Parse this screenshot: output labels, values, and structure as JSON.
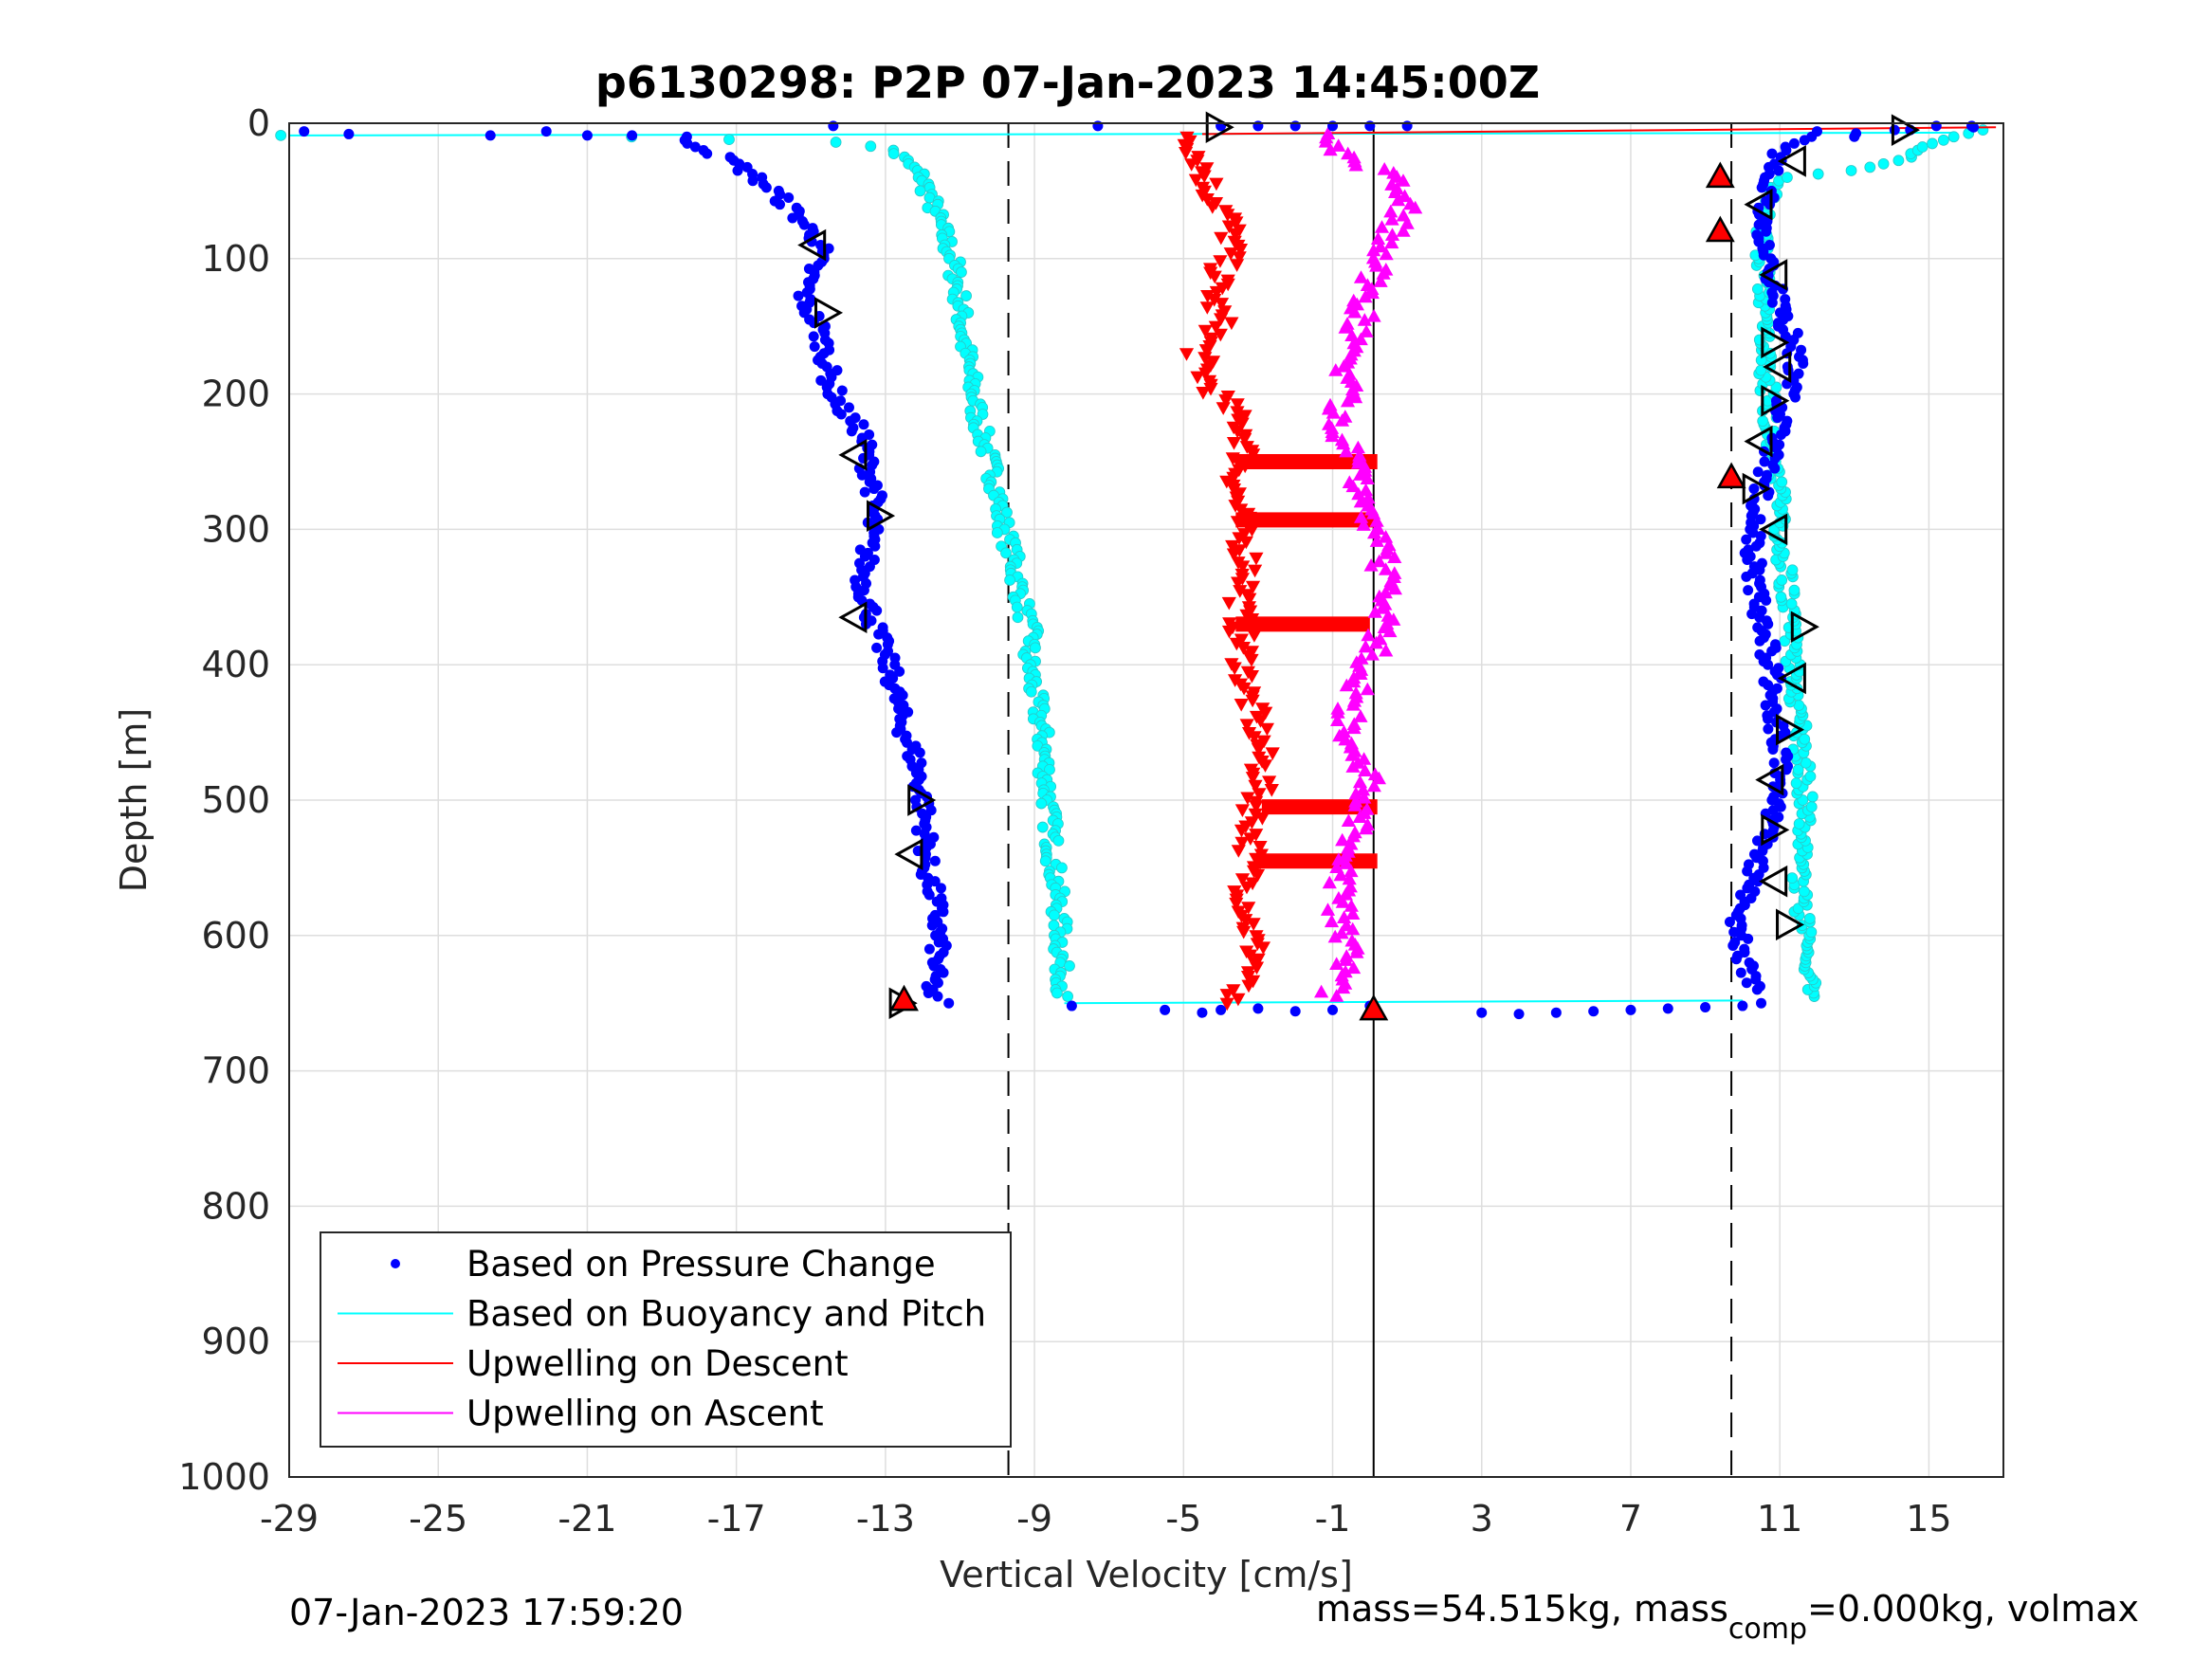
{
  "chart_data": {
    "type": "scatter",
    "title": "p6130298: P2P 07-Jan-2023 14:45:00Z",
    "xlabel": "Vertical Velocity [cm/s]",
    "ylabel": "Depth [m]",
    "xlim": [
      -29,
      17
    ],
    "ylim": [
      0,
      1000
    ],
    "y_reversed": true,
    "xticks": [
      -29,
      -25,
      -21,
      -17,
      -13,
      -9,
      -5,
      -1,
      3,
      7,
      11,
      15
    ],
    "yticks": [
      0,
      100,
      200,
      300,
      400,
      500,
      600,
      700,
      800,
      900,
      1000
    ],
    "grid": true,
    "legend_position": "bottom-left",
    "reference_lines": [
      {
        "style": "dashed",
        "x": -9.7
      },
      {
        "style": "dashed",
        "x": 9.7
      },
      {
        "style": "solid",
        "x": 0.1
      }
    ],
    "legend": [
      {
        "label": "Based on Pressure Change",
        "color": "#0000ff",
        "marker": "dot"
      },
      {
        "label": "Based on Buoyancy and Pitch",
        "color": "#00ffff",
        "marker": "line"
      },
      {
        "label": "Upwelling on Descent",
        "color": "#ff0000",
        "marker": "line"
      },
      {
        "label": "Upwelling on Ascent",
        "color": "#ff00ff",
        "marker": "line"
      }
    ],
    "series": [
      {
        "name": "Based on Pressure Change",
        "color": "#0000ff",
        "profile": [
          {
            "side": "descent",
            "x": [
              -18.5,
              -17.0,
              -16.0,
              -15.3,
              -14.7,
              -15.0,
              -15.2,
              -14.8,
              -14.6,
              -14.5,
              -14.2,
              -13.6,
              -13.5,
              -13.3,
              -13.4,
              -13.6,
              -13.3,
              -12.8,
              -12.6,
              -12.2,
              -12.0,
              -11.9,
              -11.9,
              -11.7,
              -11.6,
              -11.6,
              -11.7,
              -11.8
            ],
            "y": [
              10,
              30,
              50,
              70,
              90,
              110,
              130,
              150,
              170,
              190,
              210,
              230,
              250,
              270,
              300,
              340,
              370,
              410,
              440,
              470,
              500,
              530,
              550,
              570,
              590,
              610,
              630,
              645
            ]
          },
          {
            "side": "ascent",
            "x": [
              10.3,
              10.0,
              9.9,
              10.2,
              10.6,
              10.9,
              11.0,
              10.9,
              10.8,
              10.6,
              10.4,
              10.3,
              10.3,
              10.4,
              10.6,
              10.8,
              11.0,
              11.2,
              11.4,
              11.3,
              11.1,
              10.9,
              10.7,
              10.6,
              10.6,
              10.7,
              10.8,
              11.0,
              11.0,
              12.0,
              14.0,
              16.0
            ],
            "y": [
              640,
              610,
              590,
              560,
              530,
              500,
              470,
              440,
              410,
              380,
              350,
              320,
              300,
              280,
              260,
              240,
              220,
              200,
              180,
              160,
              140,
              120,
              100,
              80,
              60,
              45,
              35,
              25,
              20,
              10,
              5,
              2
            ]
          }
        ],
        "surface_points": {
          "x": [
            -28.6,
            -27.4,
            -23.6,
            -22.1,
            -21.0,
            -19.8,
            -14.4,
            -7.3,
            -4.0,
            -3.0,
            -2.0,
            -1.0,
            0.0,
            1.0,
            12.0,
            13.0,
            14.5,
            15.2,
            16.2
          ],
          "y": [
            6,
            8,
            9,
            6,
            9,
            9,
            2,
            2,
            2,
            2,
            2,
            2,
            2,
            2,
            6,
            10,
            5,
            2,
            3
          ]
        },
        "bottom_points": {
          "x": [
            -11.3,
            -8.0,
            -5.5,
            -4.5,
            -4.0,
            -3.0,
            -2.0,
            -1.0,
            0.0,
            3.0,
            4.0,
            5.0,
            6.0,
            7.0,
            8.0,
            9.0,
            10.0,
            10.5
          ],
          "y": [
            650,
            652,
            655,
            657,
            655,
            654,
            656,
            655,
            652,
            657,
            658,
            657,
            656,
            655,
            654,
            653,
            652,
            650
          ]
        },
        "markers": [
          {
            "symbol": "left-triangle",
            "x": -14.9,
            "y": 90
          },
          {
            "symbol": "right-triangle",
            "x": -14.6,
            "y": 140
          },
          {
            "symbol": "left-triangle",
            "x": -13.8,
            "y": 245
          },
          {
            "symbol": "right-triangle",
            "x": -13.2,
            "y": 290
          },
          {
            "symbol": "left-triangle",
            "x": -13.8,
            "y": 365
          },
          {
            "symbol": "right-triangle",
            "x": -12.1,
            "y": 500
          },
          {
            "symbol": "left-triangle",
            "x": -12.3,
            "y": 540
          },
          {
            "symbol": "right-triangle",
            "x": -12.6,
            "y": 650
          },
          {
            "symbol": "left-triangle",
            "x": 11.4,
            "y": 28
          },
          {
            "symbol": "left-triangle",
            "x": 10.5,
            "y": 60
          },
          {
            "symbol": "left-triangle",
            "x": 10.9,
            "y": 112
          },
          {
            "symbol": "right-triangle",
            "x": 10.8,
            "y": 162
          },
          {
            "symbol": "left-triangle",
            "x": 11.0,
            "y": 180
          },
          {
            "symbol": "right-triangle",
            "x": 10.8,
            "y": 205
          },
          {
            "symbol": "left-triangle",
            "x": 10.5,
            "y": 235
          },
          {
            "symbol": "right-triangle",
            "x": 10.3,
            "y": 270
          },
          {
            "symbol": "left-triangle",
            "x": 10.9,
            "y": 300
          },
          {
            "symbol": "right-triangle",
            "x": 11.6,
            "y": 372
          },
          {
            "symbol": "left-triangle",
            "x": 11.4,
            "y": 410
          },
          {
            "symbol": "right-triangle",
            "x": 11.2,
            "y": 448
          },
          {
            "symbol": "left-triangle",
            "x": 10.8,
            "y": 485
          },
          {
            "symbol": "right-triangle",
            "x": 10.8,
            "y": 522
          },
          {
            "symbol": "left-triangle",
            "x": 10.9,
            "y": 560
          },
          {
            "symbol": "right-triangle",
            "x": 11.2,
            "y": 592
          },
          {
            "symbol": "right-triangle",
            "x": 14.3,
            "y": 5
          },
          {
            "symbol": "right-triangle",
            "x": -4.1,
            "y": 3
          }
        ]
      },
      {
        "name": "Based on Buoyancy and Pitch",
        "color": "#00ffff",
        "profile": [
          {
            "side": "descent",
            "x": [
              -29.0,
              -20.0,
              -14.2,
              -12.8,
              -12.0,
              -11.6,
              -11.2,
              -11.0,
              -10.9,
              -10.7,
              -10.5,
              -10.2,
              -10.0,
              -9.9,
              -9.6,
              -9.4,
              -9.2,
              -9.0,
              -9.2,
              -9.0,
              -8.8,
              -8.7,
              -8.6,
              -8.5,
              -8.4,
              -8.3,
              -8.3,
              -8.2,
              -8.3
            ],
            "y": [
              9,
              10,
              14,
              20,
              40,
              70,
              100,
              130,
              160,
              190,
              220,
              250,
              270,
              290,
              320,
              345,
              370,
              380,
              390,
              420,
              450,
              480,
              510,
              540,
              570,
              600,
              620,
              635,
              645
            ]
          },
          {
            "side": "ascent",
            "x": [
              11.8,
              11.7,
              11.6,
              11.5,
              11.6,
              11.7,
              11.6,
              11.5,
              11.4,
              11.3,
              11.2,
              11.1,
              11.0,
              10.9,
              10.8,
              10.7,
              10.6,
              10.5,
              10.6,
              10.5,
              10.7,
              10.9,
              11.0,
              13.0,
              14.5,
              15.5,
              16.5
            ],
            "y": [
              645,
              620,
              590,
              560,
              530,
              500,
              470,
              440,
              410,
              380,
              350,
              320,
              290,
              260,
              230,
              200,
              170,
              140,
              110,
              80,
              60,
              45,
              40,
              35,
              25,
              10,
              5
            ]
          }
        ],
        "surface_line": {
          "x": [
            -29.0,
            15.7
          ],
          "y": [
            9,
            7
          ]
        },
        "bottom_line": {
          "x": [
            -8.2,
            10.0
          ],
          "y": [
            650,
            648
          ]
        }
      },
      {
        "name": "Upwelling on Descent",
        "color": "#ff0000",
        "profile": [
          {
            "side": "descent",
            "x": [
              -4.8,
              -4.5,
              -4.3,
              -3.8,
              -3.7,
              -4.0,
              -4.2,
              -4.0,
              -4.6,
              -4.4,
              -3.8,
              -3.3,
              -3.4,
              -3.6,
              -3.5,
              -3.2,
              -3.5,
              -3.4,
              -3.3,
              -3.0,
              -2.9,
              -3.1,
              -3.2,
              -3.3,
              -3.2,
              -3.0,
              -3.3,
              -3.6,
              -4.0
            ],
            "y": [
              10,
              30,
              50,
              70,
              90,
              110,
              130,
              150,
              170,
              190,
              210,
              230,
              250,
              270,
              300,
              330,
              360,
              390,
              420,
              450,
              480,
              510,
              540,
              570,
              600,
              620,
              630,
              640,
              650
            ]
          }
        ],
        "surface_line": {
          "x": [
            -4.5,
            16.8
          ],
          "y": [
            8,
            3
          ]
        },
        "horizontal_bands": [
          {
            "y": 250,
            "x": [
              -3.6,
              0.2
            ]
          },
          {
            "y": 293,
            "x": [
              -3.6,
              0.2
            ]
          },
          {
            "y": 370,
            "x": [
              -3.6,
              0.0
            ]
          },
          {
            "y": 505,
            "x": [
              -2.9,
              0.2
            ]
          },
          {
            "y": 545,
            "x": [
              -3.0,
              0.2
            ]
          }
        ],
        "markers": [
          {
            "symbol": "up-triangle-filled",
            "x": 9.4,
            "y": 40
          },
          {
            "symbol": "up-triangle-filled",
            "x": 9.4,
            "y": 80
          },
          {
            "symbol": "up-triangle-filled",
            "x": 9.7,
            "y": 262
          },
          {
            "symbol": "up-triangle-filled",
            "x": -12.5,
            "y": 648
          },
          {
            "symbol": "up-triangle-filled",
            "x": 0.1,
            "y": 655
          }
        ]
      },
      {
        "name": "Upwelling on Ascent",
        "color": "#ff00ff",
        "profile": [
          {
            "side": "ascent",
            "x": [
              -1.2,
              -0.8,
              -0.5,
              -0.7,
              -0.9,
              -0.6,
              -0.4,
              -0.2,
              0.0,
              -0.3,
              -0.5,
              -0.6,
              -0.2,
              0.1,
              0.3,
              0.5,
              0.4,
              0.2,
              0.0,
              -0.3,
              -0.6,
              -0.8,
              -0.7,
              -0.6,
              -0.4,
              -0.2,
              0.0,
              0.3,
              0.6,
              1.0,
              0.5,
              -0.8,
              -1.2
            ],
            "y": [
              645,
              630,
              610,
              590,
              570,
              550,
              530,
              510,
              490,
              470,
              450,
              430,
              410,
              390,
              370,
              350,
              330,
              300,
              280,
              260,
              240,
              220,
              200,
              180,
              160,
              140,
              120,
              100,
              80,
              60,
              40,
              20,
              8
            ]
          }
        ]
      }
    ],
    "footer_timestamp": "07-Jan-2023 17:59:20",
    "footer_mass_prefix": "mass=54.515kg, mass",
    "footer_mass_sub": "comp",
    "footer_mass_suffix": "=0.000kg, volmax"
  }
}
